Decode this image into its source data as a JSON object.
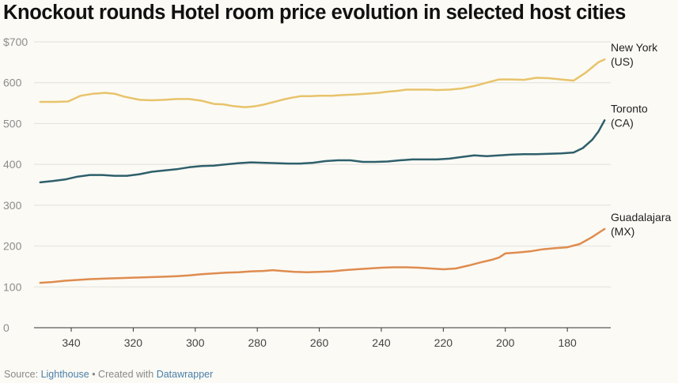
{
  "title": "Knockout rounds Hotel room price evolution in selected host cities",
  "chart_data": {
    "type": "line",
    "x_reversed": true,
    "xlim": [
      352,
      166
    ],
    "ylim": [
      0,
      700
    ],
    "y_ticks": [
      0,
      100,
      200,
      300,
      400,
      500,
      600,
      700
    ],
    "y_tick_labels": [
      "0",
      "100",
      "200",
      "300",
      "400",
      "500",
      "600",
      "$700"
    ],
    "x_ticks": [
      340,
      320,
      300,
      280,
      260,
      240,
      220,
      200,
      180
    ],
    "x_tick_labels": [
      "340",
      "320",
      "300",
      "280",
      "260",
      "240",
      "220",
      "200",
      "180"
    ],
    "grid": true,
    "series": [
      {
        "name": "New York (US)",
        "label_lines": [
          "New York",
          "(US)"
        ],
        "color": "#e8c36a",
        "x": [
          350,
          345,
          341,
          337,
          333,
          329,
          326,
          323,
          318,
          314,
          310,
          306,
          302,
          298,
          294,
          291,
          288,
          284,
          281,
          278,
          275,
          272,
          269,
          266,
          263,
          260,
          256,
          252,
          249,
          245,
          241,
          238,
          235,
          232,
          229,
          225,
          222,
          218,
          214,
          210,
          206,
          202,
          198,
          194,
          190,
          186,
          182,
          178,
          174,
          170,
          168
        ],
        "y": [
          553,
          553,
          554,
          568,
          573,
          575,
          573,
          566,
          558,
          557,
          558,
          560,
          560,
          556,
          548,
          547,
          543,
          540,
          542,
          546,
          552,
          558,
          563,
          567,
          567,
          568,
          568,
          570,
          571,
          573,
          575,
          578,
          580,
          583,
          583,
          583,
          582,
          583,
          586,
          592,
          600,
          608,
          608,
          607,
          612,
          611,
          608,
          605,
          625,
          650,
          657
        ]
      },
      {
        "name": "Toronto (CA)",
        "label_lines": [
          "Toronto",
          "(CA)"
        ],
        "color": "#2e5f6b",
        "x": [
          350,
          346,
          342,
          338,
          334,
          330,
          326,
          322,
          318,
          314,
          310,
          306,
          302,
          298,
          294,
          290,
          286,
          282,
          278,
          274,
          270,
          266,
          262,
          258,
          254,
          250,
          246,
          242,
          238,
          234,
          230,
          226,
          222,
          218,
          214,
          210,
          206,
          202,
          198,
          194,
          190,
          186,
          182,
          178,
          175,
          172,
          170,
          168
        ],
        "y": [
          356,
          359,
          363,
          370,
          374,
          374,
          372,
          372,
          376,
          382,
          385,
          388,
          393,
          396,
          397,
          400,
          403,
          405,
          404,
          403,
          402,
          402,
          404,
          408,
          410,
          410,
          406,
          406,
          407,
          410,
          412,
          412,
          412,
          414,
          418,
          422,
          420,
          422,
          424,
          425,
          425,
          426,
          427,
          429,
          440,
          460,
          480,
          508
        ]
      },
      {
        "name": "Guadalajara (MX)",
        "label_lines": [
          "Guadalajara",
          "(MX)"
        ],
        "color": "#df8c4e",
        "x": [
          350,
          346,
          342,
          338,
          334,
          330,
          326,
          322,
          318,
          314,
          310,
          306,
          302,
          298,
          294,
          290,
          286,
          282,
          278,
          275,
          272,
          268,
          264,
          260,
          256,
          252,
          248,
          244,
          240,
          236,
          232,
          228,
          224,
          220,
          216,
          212,
          208,
          204,
          202,
          200,
          196,
          192,
          188,
          184,
          180,
          176,
          172,
          168
        ],
        "y": [
          110,
          112,
          115,
          117,
          119,
          120,
          121,
          122,
          123,
          124,
          125,
          126,
          128,
          131,
          133,
          135,
          136,
          138,
          139,
          141,
          139,
          137,
          136,
          137,
          138,
          141,
          143,
          145,
          147,
          148,
          148,
          147,
          145,
          143,
          145,
          152,
          160,
          167,
          172,
          182,
          184,
          187,
          192,
          195,
          197,
          205,
          222,
          242
        ]
      }
    ]
  },
  "footer": {
    "source_label": "Source: ",
    "source_name": "Lighthouse",
    "separator": " • Created with ",
    "tool_name": "Datawrapper"
  }
}
